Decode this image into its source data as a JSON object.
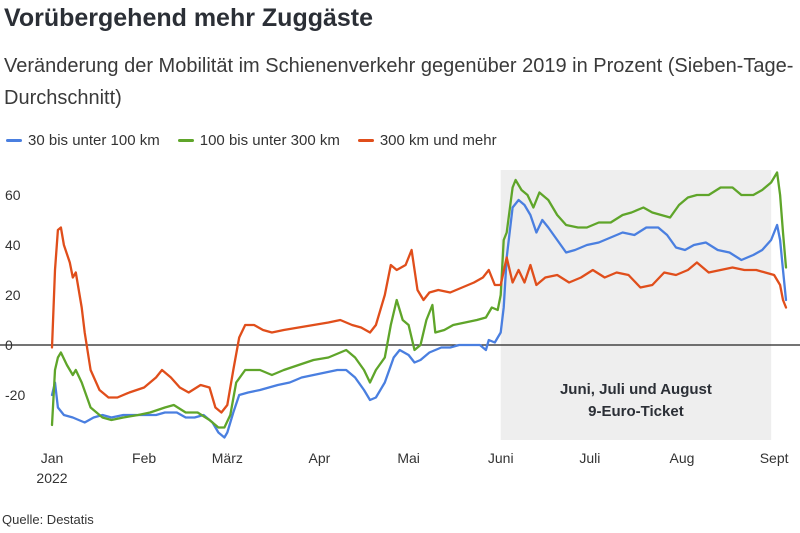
{
  "title": "Vorübergehend mehr Zuggäste",
  "subtitle": "Veränderung der Mobilität im Schienenverkehr gegenüber 2019 in Prozent (Sieben-Tage-Durchschnitt)",
  "source": "Quelle: Destatis",
  "colors": {
    "blue": "#4a7fe0",
    "green": "#5fa52a",
    "red": "#e04e1b",
    "shade": "#eeeeee",
    "zero": "#222222"
  },
  "chart_data": {
    "type": "line",
    "xlabel": "",
    "ylabel": "",
    "ylim": [
      -38,
      72
    ],
    "xlim": [
      "2022-01-01",
      "2022-09-05"
    ],
    "x_ticks": [
      {
        "date": "2022-01-01",
        "label": "Jan",
        "label2": "2022"
      },
      {
        "date": "2022-02-01",
        "label": "Feb"
      },
      {
        "date": "2022-03-01",
        "label": "März"
      },
      {
        "date": "2022-04-01",
        "label": "Apr"
      },
      {
        "date": "2022-05-01",
        "label": "Mai"
      },
      {
        "date": "2022-06-01",
        "label": "Juni"
      },
      {
        "date": "2022-07-01",
        "label": "Juli"
      },
      {
        "date": "2022-08-01",
        "label": "Aug"
      },
      {
        "date": "2022-09-01",
        "label": "Sept"
      }
    ],
    "y_ticks": [
      -20,
      0,
      20,
      40,
      60
    ],
    "grid": false,
    "legend_position": "top-left",
    "highlight": {
      "from": "2022-06-01",
      "to": "2022-08-31",
      "label_line1": "Juni, Juli und August",
      "label_line2": "9-Euro-Ticket"
    },
    "series": [
      {
        "name": "30 bis unter 100 km",
        "color": "#4a7fe0",
        "points": [
          [
            "2022-01-01",
            -20
          ],
          [
            "2022-01-02",
            -15
          ],
          [
            "2022-01-03",
            -25
          ],
          [
            "2022-01-05",
            -28
          ],
          [
            "2022-01-08",
            -29
          ],
          [
            "2022-01-10",
            -30
          ],
          [
            "2022-01-12",
            -31
          ],
          [
            "2022-01-15",
            -29
          ],
          [
            "2022-01-18",
            -28
          ],
          [
            "2022-01-21",
            -29
          ],
          [
            "2022-01-25",
            -28
          ],
          [
            "2022-01-28",
            -28
          ],
          [
            "2022-02-01",
            -28
          ],
          [
            "2022-02-05",
            -28
          ],
          [
            "2022-02-08",
            -27
          ],
          [
            "2022-02-12",
            -27
          ],
          [
            "2022-02-15",
            -29
          ],
          [
            "2022-02-18",
            -29
          ],
          [
            "2022-02-21",
            -28
          ],
          [
            "2022-02-24",
            -31
          ],
          [
            "2022-02-26",
            -35
          ],
          [
            "2022-02-28",
            -37
          ],
          [
            "2022-03-01",
            -35
          ],
          [
            "2022-03-03",
            -27
          ],
          [
            "2022-03-05",
            -20
          ],
          [
            "2022-03-08",
            -19
          ],
          [
            "2022-03-12",
            -18
          ],
          [
            "2022-03-15",
            -17
          ],
          [
            "2022-03-18",
            -16
          ],
          [
            "2022-03-22",
            -15
          ],
          [
            "2022-03-26",
            -13
          ],
          [
            "2022-03-30",
            -12
          ],
          [
            "2022-04-03",
            -11
          ],
          [
            "2022-04-07",
            -10
          ],
          [
            "2022-04-10",
            -10
          ],
          [
            "2022-04-13",
            -13
          ],
          [
            "2022-04-16",
            -18
          ],
          [
            "2022-04-18",
            -22
          ],
          [
            "2022-04-20",
            -21
          ],
          [
            "2022-04-23",
            -15
          ],
          [
            "2022-04-26",
            -5
          ],
          [
            "2022-04-28",
            -2
          ],
          [
            "2022-05-01",
            -4
          ],
          [
            "2022-05-03",
            -7
          ],
          [
            "2022-05-05",
            -6
          ],
          [
            "2022-05-08",
            -3
          ],
          [
            "2022-05-12",
            -1
          ],
          [
            "2022-05-15",
            -1
          ],
          [
            "2022-05-18",
            0
          ],
          [
            "2022-05-22",
            0
          ],
          [
            "2022-05-25",
            0
          ],
          [
            "2022-05-27",
            -2
          ],
          [
            "2022-05-28",
            2
          ],
          [
            "2022-05-30",
            1
          ],
          [
            "2022-06-01",
            5
          ],
          [
            "2022-06-02",
            15
          ],
          [
            "2022-06-03",
            35
          ],
          [
            "2022-06-05",
            55
          ],
          [
            "2022-06-07",
            58
          ],
          [
            "2022-06-09",
            56
          ],
          [
            "2022-06-11",
            52
          ],
          [
            "2022-06-13",
            45
          ],
          [
            "2022-06-15",
            50
          ],
          [
            "2022-06-17",
            47
          ],
          [
            "2022-06-20",
            42
          ],
          [
            "2022-06-23",
            37
          ],
          [
            "2022-06-26",
            38
          ],
          [
            "2022-06-30",
            40
          ],
          [
            "2022-07-04",
            41
          ],
          [
            "2022-07-08",
            43
          ],
          [
            "2022-07-12",
            45
          ],
          [
            "2022-07-16",
            44
          ],
          [
            "2022-07-20",
            47
          ],
          [
            "2022-07-24",
            47
          ],
          [
            "2022-07-27",
            44
          ],
          [
            "2022-07-30",
            39
          ],
          [
            "2022-08-02",
            38
          ],
          [
            "2022-08-05",
            40
          ],
          [
            "2022-08-09",
            41
          ],
          [
            "2022-08-13",
            38
          ],
          [
            "2022-08-17",
            37
          ],
          [
            "2022-08-21",
            34
          ],
          [
            "2022-08-25",
            36
          ],
          [
            "2022-08-28",
            38
          ],
          [
            "2022-08-31",
            42
          ],
          [
            "2022-09-02",
            48
          ],
          [
            "2022-09-03",
            42
          ],
          [
            "2022-09-04",
            30
          ],
          [
            "2022-09-05",
            18
          ]
        ]
      },
      {
        "name": "100 bis unter 300 km",
        "color": "#5fa52a",
        "points": [
          [
            "2022-01-01",
            -32
          ],
          [
            "2022-01-02",
            -10
          ],
          [
            "2022-01-03",
            -5
          ],
          [
            "2022-01-04",
            -3
          ],
          [
            "2022-01-06",
            -8
          ],
          [
            "2022-01-08",
            -12
          ],
          [
            "2022-01-09",
            -10
          ],
          [
            "2022-01-11",
            -15
          ],
          [
            "2022-01-14",
            -25
          ],
          [
            "2022-01-18",
            -29
          ],
          [
            "2022-01-21",
            -30
          ],
          [
            "2022-01-25",
            -29
          ],
          [
            "2022-01-30",
            -28
          ],
          [
            "2022-02-03",
            -27
          ],
          [
            "2022-02-08",
            -25
          ],
          [
            "2022-02-11",
            -24
          ],
          [
            "2022-02-15",
            -27
          ],
          [
            "2022-02-19",
            -27
          ],
          [
            "2022-02-23",
            -30
          ],
          [
            "2022-02-26",
            -33
          ],
          [
            "2022-02-28",
            -33
          ],
          [
            "2022-03-02",
            -28
          ],
          [
            "2022-03-04",
            -15
          ],
          [
            "2022-03-07",
            -10
          ],
          [
            "2022-03-12",
            -10
          ],
          [
            "2022-03-16",
            -12
          ],
          [
            "2022-03-20",
            -10
          ],
          [
            "2022-03-25",
            -8
          ],
          [
            "2022-03-30",
            -6
          ],
          [
            "2022-04-04",
            -5
          ],
          [
            "2022-04-08",
            -3
          ],
          [
            "2022-04-10",
            -2
          ],
          [
            "2022-04-13",
            -5
          ],
          [
            "2022-04-16",
            -10
          ],
          [
            "2022-04-18",
            -15
          ],
          [
            "2022-04-20",
            -10
          ],
          [
            "2022-04-23",
            -5
          ],
          [
            "2022-04-25",
            8
          ],
          [
            "2022-04-27",
            18
          ],
          [
            "2022-04-29",
            10
          ],
          [
            "2022-05-01",
            8
          ],
          [
            "2022-05-03",
            -2
          ],
          [
            "2022-05-05",
            0
          ],
          [
            "2022-05-07",
            10
          ],
          [
            "2022-05-09",
            16
          ],
          [
            "2022-05-10",
            5
          ],
          [
            "2022-05-13",
            6
          ],
          [
            "2022-05-16",
            8
          ],
          [
            "2022-05-20",
            9
          ],
          [
            "2022-05-24",
            10
          ],
          [
            "2022-05-27",
            11
          ],
          [
            "2022-05-29",
            15
          ],
          [
            "2022-05-31",
            14
          ],
          [
            "2022-06-01",
            20
          ],
          [
            "2022-06-02",
            42
          ],
          [
            "2022-06-03",
            45
          ],
          [
            "2022-06-05",
            63
          ],
          [
            "2022-06-06",
            66
          ],
          [
            "2022-06-08",
            62
          ],
          [
            "2022-06-10",
            60
          ],
          [
            "2022-06-12",
            55
          ],
          [
            "2022-06-14",
            61
          ],
          [
            "2022-06-17",
            58
          ],
          [
            "2022-06-20",
            52
          ],
          [
            "2022-06-23",
            48
          ],
          [
            "2022-06-27",
            47
          ],
          [
            "2022-06-30",
            47
          ],
          [
            "2022-07-04",
            49
          ],
          [
            "2022-07-08",
            49
          ],
          [
            "2022-07-12",
            52
          ],
          [
            "2022-07-15",
            53
          ],
          [
            "2022-07-19",
            55
          ],
          [
            "2022-07-22",
            53
          ],
          [
            "2022-07-25",
            52
          ],
          [
            "2022-07-28",
            51
          ],
          [
            "2022-07-31",
            56
          ],
          [
            "2022-08-03",
            59
          ],
          [
            "2022-08-06",
            60
          ],
          [
            "2022-08-10",
            60
          ],
          [
            "2022-08-14",
            63
          ],
          [
            "2022-08-18",
            63
          ],
          [
            "2022-08-21",
            60
          ],
          [
            "2022-08-25",
            60
          ],
          [
            "2022-08-28",
            62
          ],
          [
            "2022-08-31",
            65
          ],
          [
            "2022-09-02",
            69
          ],
          [
            "2022-09-03",
            60
          ],
          [
            "2022-09-04",
            45
          ],
          [
            "2022-09-05",
            31
          ]
        ]
      },
      {
        "name": "300 km und mehr",
        "color": "#e04e1b",
        "points": [
          [
            "2022-01-01",
            -1
          ],
          [
            "2022-01-02",
            30
          ],
          [
            "2022-01-03",
            46
          ],
          [
            "2022-01-04",
            47
          ],
          [
            "2022-01-05",
            40
          ],
          [
            "2022-01-07",
            33
          ],
          [
            "2022-01-08",
            27
          ],
          [
            "2022-01-09",
            29
          ],
          [
            "2022-01-11",
            15
          ],
          [
            "2022-01-12",
            5
          ],
          [
            "2022-01-14",
            -10
          ],
          [
            "2022-01-17",
            -18
          ],
          [
            "2022-01-20",
            -21
          ],
          [
            "2022-01-23",
            -21
          ],
          [
            "2022-01-27",
            -19
          ],
          [
            "2022-02-01",
            -17
          ],
          [
            "2022-02-05",
            -13
          ],
          [
            "2022-02-07",
            -10
          ],
          [
            "2022-02-10",
            -13
          ],
          [
            "2022-02-13",
            -17
          ],
          [
            "2022-02-16",
            -19
          ],
          [
            "2022-02-20",
            -16
          ],
          [
            "2022-02-23",
            -17
          ],
          [
            "2022-02-25",
            -25
          ],
          [
            "2022-02-27",
            -27
          ],
          [
            "2022-03-01",
            -24
          ],
          [
            "2022-03-03",
            -10
          ],
          [
            "2022-03-05",
            3
          ],
          [
            "2022-03-07",
            8
          ],
          [
            "2022-03-10",
            8
          ],
          [
            "2022-03-13",
            6
          ],
          [
            "2022-03-16",
            5
          ],
          [
            "2022-03-20",
            6
          ],
          [
            "2022-03-25",
            7
          ],
          [
            "2022-03-30",
            8
          ],
          [
            "2022-04-04",
            9
          ],
          [
            "2022-04-08",
            10
          ],
          [
            "2022-04-12",
            8
          ],
          [
            "2022-04-15",
            7
          ],
          [
            "2022-04-18",
            5
          ],
          [
            "2022-04-20",
            8
          ],
          [
            "2022-04-23",
            20
          ],
          [
            "2022-04-25",
            32
          ],
          [
            "2022-04-27",
            30
          ],
          [
            "2022-04-30",
            32
          ],
          [
            "2022-05-02",
            38
          ],
          [
            "2022-05-04",
            22
          ],
          [
            "2022-05-06",
            18
          ],
          [
            "2022-05-08",
            21
          ],
          [
            "2022-05-11",
            22
          ],
          [
            "2022-05-15",
            21
          ],
          [
            "2022-05-19",
            23
          ],
          [
            "2022-05-23",
            25
          ],
          [
            "2022-05-26",
            27
          ],
          [
            "2022-05-28",
            30
          ],
          [
            "2022-05-30",
            24
          ],
          [
            "2022-06-01",
            24
          ],
          [
            "2022-06-03",
            35
          ],
          [
            "2022-06-05",
            25
          ],
          [
            "2022-06-07",
            30
          ],
          [
            "2022-06-09",
            25
          ],
          [
            "2022-06-11",
            32
          ],
          [
            "2022-06-13",
            24
          ],
          [
            "2022-06-16",
            27
          ],
          [
            "2022-06-20",
            28
          ],
          [
            "2022-06-24",
            25
          ],
          [
            "2022-06-28",
            27
          ],
          [
            "2022-07-02",
            30
          ],
          [
            "2022-07-06",
            27
          ],
          [
            "2022-07-10",
            29
          ],
          [
            "2022-07-14",
            28
          ],
          [
            "2022-07-18",
            23
          ],
          [
            "2022-07-22",
            24
          ],
          [
            "2022-07-26",
            29
          ],
          [
            "2022-07-30",
            28
          ],
          [
            "2022-08-03",
            30
          ],
          [
            "2022-08-06",
            33
          ],
          [
            "2022-08-10",
            29
          ],
          [
            "2022-08-14",
            30
          ],
          [
            "2022-08-18",
            31
          ],
          [
            "2022-08-22",
            30
          ],
          [
            "2022-08-26",
            30
          ],
          [
            "2022-08-29",
            29
          ],
          [
            "2022-09-01",
            28
          ],
          [
            "2022-09-03",
            24
          ],
          [
            "2022-09-04",
            18
          ],
          [
            "2022-09-05",
            15
          ]
        ]
      }
    ]
  }
}
